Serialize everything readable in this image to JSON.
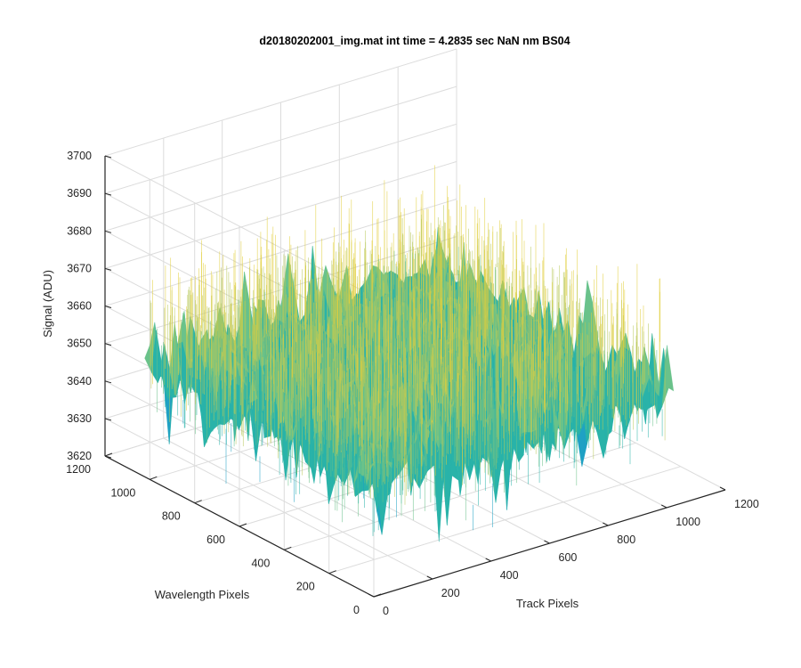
{
  "window": {
    "background": "#ffffff"
  },
  "chart_data": {
    "type": "surface3d",
    "title": "d20180202001_img.mat int time = 4.2835 sec  NaN nm BS04",
    "xlabel": "Track Pixels",
    "ylabel": "Wavelength Pixels",
    "zlabel": "Signal (ADU)",
    "xlim": [
      0,
      1200
    ],
    "ylim": [
      0,
      1200
    ],
    "zlim": [
      3620,
      3700
    ],
    "xticks": [
      0,
      200,
      400,
      600,
      800,
      1000,
      1200
    ],
    "yticks": [
      0,
      200,
      400,
      600,
      800,
      1000,
      1200
    ],
    "zticks": [
      3620,
      3630,
      3640,
      3650,
      3660,
      3670,
      3680,
      3690,
      3700
    ],
    "surface": {
      "x_extent": [
        1,
        1024
      ],
      "y_extent": [
        1,
        1024
      ],
      "mean_signal": 3650,
      "signal_range": [
        3625,
        3680
      ],
      "colormap": [
        "#0072bd",
        "#1fa1c4",
        "#29b3a9",
        "#6ac28a",
        "#b8c85a",
        "#e2cf3d"
      ]
    },
    "grid": true,
    "box": "3d-grid"
  }
}
